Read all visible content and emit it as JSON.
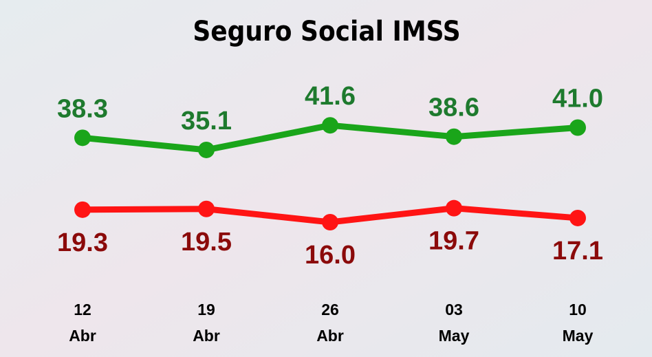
{
  "chart_data": {
    "type": "line",
    "title": "Seguro Social IMSS",
    "categories": [
      "12 Abr",
      "19 Abr",
      "26 Abr",
      "03 May",
      "10 May"
    ],
    "series": [
      {
        "color": "#1aa51a",
        "label_color": "#1e7a2e",
        "values": [
          38.3,
          35.1,
          41.6,
          38.6,
          41.0
        ],
        "value_labels": [
          "38.3",
          "35.1",
          "41.6",
          "38.6",
          "41.0"
        ]
      },
      {
        "color": "#ff1414",
        "label_color": "#8b0a0a",
        "values": [
          19.3,
          19.5,
          16.0,
          19.7,
          17.1
        ],
        "value_labels": [
          "19.3",
          "19.5",
          "16.0",
          "19.7",
          "17.1"
        ]
      }
    ],
    "ylim": [
      0,
      60
    ]
  }
}
